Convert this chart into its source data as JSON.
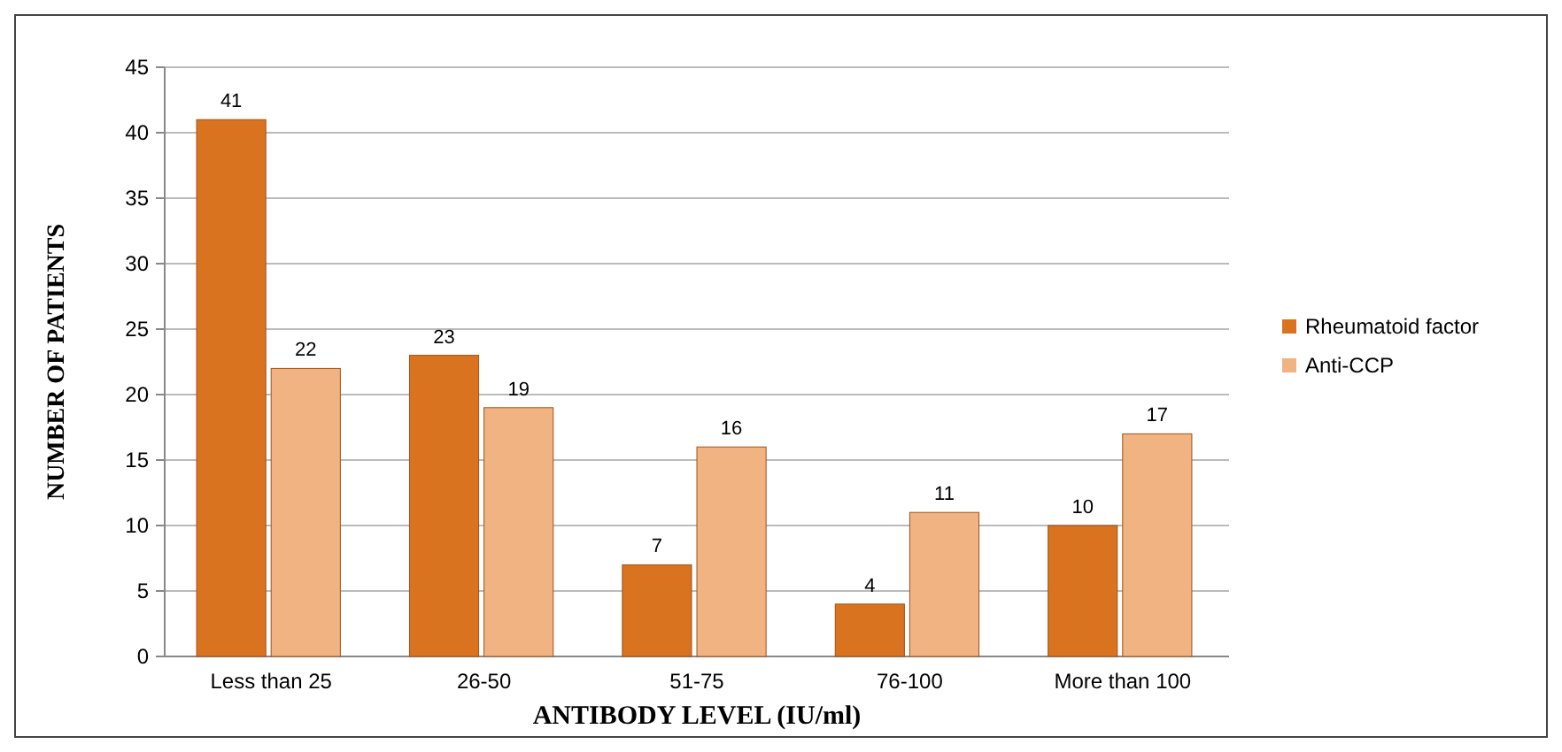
{
  "chart_data": {
    "type": "bar",
    "xlabel": "ANTIBODY LEVEL (IU/ml)",
    "ylabel": "NUMBER OF PATIENTS",
    "categories": [
      "Less than 25",
      "26-50",
      "51-75",
      "76-100",
      "More than 100"
    ],
    "series": [
      {
        "name": "Rheumatoid factor",
        "color": "#d9731f",
        "values": [
          41,
          23,
          7,
          4,
          10
        ]
      },
      {
        "name": "Anti-CCP",
        "color": "#f2b383",
        "values": [
          22,
          19,
          16,
          11,
          17
        ]
      }
    ],
    "ylim": [
      0,
      45
    ],
    "yticks": [
      0,
      5,
      10,
      15,
      20,
      25,
      30,
      35,
      40,
      45
    ],
    "grid": "y",
    "legend": "right",
    "data_labels": true
  }
}
